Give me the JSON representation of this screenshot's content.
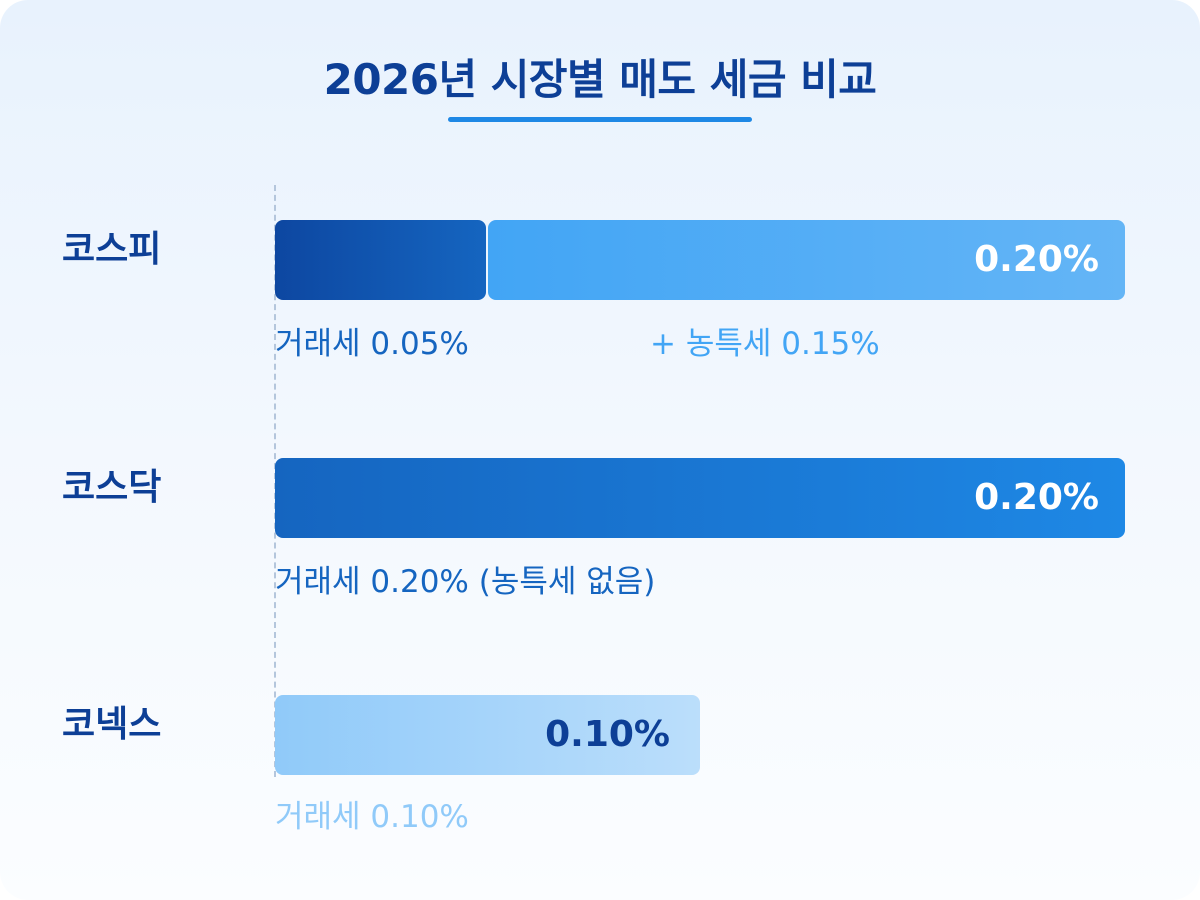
{
  "chart_data": {
    "type": "bar",
    "orientation": "horizontal",
    "stacked": true,
    "title": "2026년 시장별 매도 세금 비교",
    "unit": "%",
    "xlim": [
      0,
      0.2
    ],
    "categories": [
      "코스피",
      "코스닥",
      "코넥스"
    ],
    "series": [
      {
        "name": "거래세",
        "values": [
          0.05,
          0.2,
          0.1
        ]
      },
      {
        "name": "농특세",
        "values": [
          0.15,
          0,
          0
        ]
      }
    ],
    "totals": [
      0.2,
      0.2,
      0.1
    ],
    "total_labels": [
      "0.20%",
      "0.20%",
      "0.10%"
    ],
    "annotations": [
      [
        "거래세 0.05%",
        "+ 농특세 0.15%"
      ],
      [
        "거래세 0.20% (농특세 없음)"
      ],
      [
        "거래세 0.10%"
      ]
    ],
    "colors": {
      "title": "#0d3f96",
      "kospi_tax": [
        "#0d47a1",
        "#1565c0"
      ],
      "kospi_farm": [
        "#42a5f5",
        "#64b5f6"
      ],
      "kosdaq": [
        "#1565c0",
        "#1e88e5"
      ],
      "konex": [
        "#90caf9",
        "#bbdefb"
      ],
      "note_dark": "#1565c0",
      "note_mid": "#42a5f5",
      "note_light": "#90caf9"
    }
  }
}
